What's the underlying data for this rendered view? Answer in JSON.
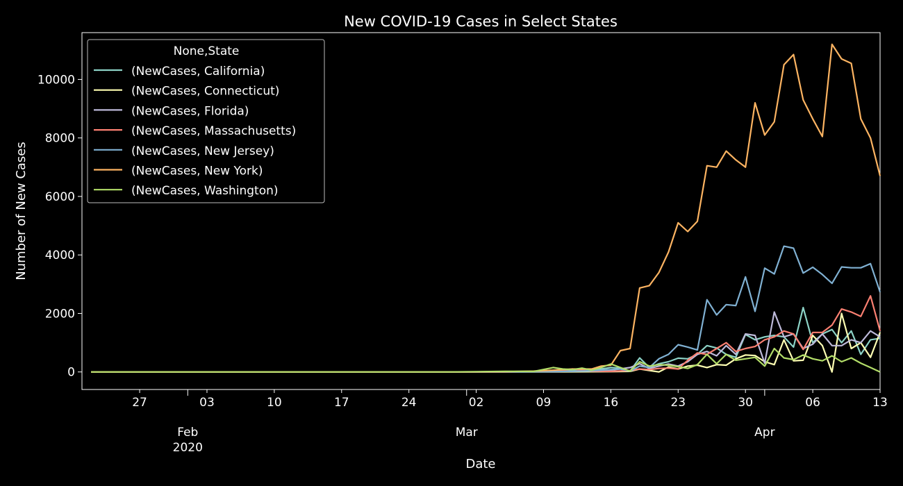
{
  "chart_data": {
    "type": "line",
    "title": "New COVID-19 Cases in Select States",
    "xlabel": "Date",
    "ylabel": "Number of New Cases",
    "xlim": [
      "2020-01-21",
      "2020-04-13"
    ],
    "ylim": [
      -600,
      11600
    ],
    "grid": false,
    "background": "#000000",
    "legend": {
      "title": "None,State",
      "placement": "top-left"
    },
    "x_ticks_major": [
      {
        "date": "2020-02-01",
        "label": "Feb",
        "sublabel": "2020"
      },
      {
        "date": "2020-03-01",
        "label": "Mar",
        "sublabel": ""
      },
      {
        "date": "2020-04-01",
        "label": "Apr",
        "sublabel": ""
      }
    ],
    "x_ticks_minor": [
      {
        "date": "2020-01-27",
        "label": "27"
      },
      {
        "date": "2020-02-03",
        "label": "03"
      },
      {
        "date": "2020-02-10",
        "label": "10"
      },
      {
        "date": "2020-02-17",
        "label": "17"
      },
      {
        "date": "2020-02-24",
        "label": "24"
      },
      {
        "date": "2020-03-02",
        "label": "02"
      },
      {
        "date": "2020-03-09",
        "label": "09"
      },
      {
        "date": "2020-03-16",
        "label": "16"
      },
      {
        "date": "2020-03-23",
        "label": "23"
      },
      {
        "date": "2020-03-30",
        "label": "30"
      },
      {
        "date": "2020-04-06",
        "label": "06"
      },
      {
        "date": "2020-04-13",
        "label": "13"
      }
    ],
    "y_ticks": [
      0,
      2000,
      4000,
      6000,
      8000,
      10000
    ],
    "series": [
      {
        "name": "(NewCases, California)",
        "color": "#8dd3c7",
        "points": [
          [
            "2020-01-21",
            0
          ],
          [
            "2020-03-01",
            0
          ],
          [
            "2020-03-08",
            20
          ],
          [
            "2020-03-12",
            70
          ],
          [
            "2020-03-15",
            100
          ],
          [
            "2020-03-16",
            150
          ],
          [
            "2020-03-17",
            130
          ],
          [
            "2020-03-18",
            30
          ],
          [
            "2020-03-19",
            480
          ],
          [
            "2020-03-20",
            150
          ],
          [
            "2020-03-21",
            280
          ],
          [
            "2020-03-22",
            350
          ],
          [
            "2020-03-23",
            470
          ],
          [
            "2020-03-24",
            450
          ],
          [
            "2020-03-25",
            600
          ],
          [
            "2020-03-26",
            900
          ],
          [
            "2020-03-27",
            820
          ],
          [
            "2020-03-28",
            600
          ],
          [
            "2020-03-29",
            500
          ],
          [
            "2020-03-30",
            1280
          ],
          [
            "2020-03-31",
            1100
          ],
          [
            "2020-04-01",
            1200
          ],
          [
            "2020-04-02",
            1250
          ],
          [
            "2020-04-03",
            1200
          ],
          [
            "2020-04-04",
            850
          ],
          [
            "2020-04-05",
            2200
          ],
          [
            "2020-04-06",
            1000
          ],
          [
            "2020-04-07",
            1300
          ],
          [
            "2020-04-08",
            1450
          ],
          [
            "2020-04-09",
            1000
          ],
          [
            "2020-04-10",
            1400
          ],
          [
            "2020-04-11",
            600
          ],
          [
            "2020-04-12",
            1100
          ],
          [
            "2020-04-13",
            1150
          ]
        ]
      },
      {
        "name": "(NewCases, Connecticut)",
        "color": "#ffffb3",
        "points": [
          [
            "2020-01-21",
            0
          ],
          [
            "2020-03-10",
            0
          ],
          [
            "2020-03-16",
            10
          ],
          [
            "2020-03-18",
            20
          ],
          [
            "2020-03-19",
            100
          ],
          [
            "2020-03-20",
            50
          ],
          [
            "2020-03-21",
            0
          ],
          [
            "2020-03-22",
            170
          ],
          [
            "2020-03-23",
            100
          ],
          [
            "2020-03-24",
            200
          ],
          [
            "2020-03-25",
            230
          ],
          [
            "2020-03-26",
            150
          ],
          [
            "2020-03-27",
            250
          ],
          [
            "2020-03-28",
            230
          ],
          [
            "2020-03-29",
            450
          ],
          [
            "2020-03-30",
            580
          ],
          [
            "2020-03-31",
            560
          ],
          [
            "2020-04-01",
            350
          ],
          [
            "2020-04-02",
            250
          ],
          [
            "2020-04-03",
            1100
          ],
          [
            "2020-04-04",
            380
          ],
          [
            "2020-04-05",
            400
          ],
          [
            "2020-04-06",
            1250
          ],
          [
            "2020-04-07",
            900
          ],
          [
            "2020-04-08",
            0
          ],
          [
            "2020-04-09",
            2000
          ],
          [
            "2020-04-10",
            800
          ],
          [
            "2020-04-11",
            1000
          ],
          [
            "2020-04-12",
            500
          ],
          [
            "2020-04-13",
            1350
          ]
        ]
      },
      {
        "name": "(NewCases, Florida)",
        "color": "#bebada",
        "points": [
          [
            "2020-01-21",
            0
          ],
          [
            "2020-03-02",
            0
          ],
          [
            "2020-03-10",
            10
          ],
          [
            "2020-03-14",
            40
          ],
          [
            "2020-03-16",
            60
          ],
          [
            "2020-03-18",
            150
          ],
          [
            "2020-03-19",
            280
          ],
          [
            "2020-03-20",
            120
          ],
          [
            "2020-03-21",
            200
          ],
          [
            "2020-03-22",
            270
          ],
          [
            "2020-03-23",
            200
          ],
          [
            "2020-03-24",
            350
          ],
          [
            "2020-03-25",
            600
          ],
          [
            "2020-03-26",
            700
          ],
          [
            "2020-03-27",
            550
          ],
          [
            "2020-03-28",
            900
          ],
          [
            "2020-03-29",
            600
          ],
          [
            "2020-03-30",
            1300
          ],
          [
            "2020-03-31",
            1250
          ],
          [
            "2020-04-01",
            300
          ],
          [
            "2020-04-02",
            2050
          ],
          [
            "2020-04-03",
            1200
          ],
          [
            "2020-04-04",
            1300
          ],
          [
            "2020-04-05",
            800
          ],
          [
            "2020-04-06",
            950
          ],
          [
            "2020-04-07",
            1300
          ],
          [
            "2020-04-08",
            900
          ],
          [
            "2020-04-09",
            900
          ],
          [
            "2020-04-10",
            1100
          ],
          [
            "2020-04-11",
            1000
          ],
          [
            "2020-04-12",
            1400
          ],
          [
            "2020-04-13",
            1200
          ]
        ]
      },
      {
        "name": "(NewCases, Massachusetts)",
        "color": "#fb8072",
        "points": [
          [
            "2020-01-21",
            0
          ],
          [
            "2020-03-05",
            0
          ],
          [
            "2020-03-10",
            20
          ],
          [
            "2020-03-12",
            100
          ],
          [
            "2020-03-14",
            30
          ],
          [
            "2020-03-16",
            20
          ],
          [
            "2020-03-18",
            50
          ],
          [
            "2020-03-19",
            100
          ],
          [
            "2020-03-20",
            80
          ],
          [
            "2020-03-21",
            120
          ],
          [
            "2020-03-22",
            130
          ],
          [
            "2020-03-23",
            100
          ],
          [
            "2020-03-24",
            400
          ],
          [
            "2020-03-25",
            650
          ],
          [
            "2020-03-26",
            600
          ],
          [
            "2020-03-27",
            800
          ],
          [
            "2020-03-28",
            1000
          ],
          [
            "2020-03-29",
            700
          ],
          [
            "2020-03-30",
            800
          ],
          [
            "2020-03-31",
            870
          ],
          [
            "2020-04-01",
            1100
          ],
          [
            "2020-04-02",
            1200
          ],
          [
            "2020-04-03",
            1400
          ],
          [
            "2020-04-04",
            1300
          ],
          [
            "2020-04-05",
            770
          ],
          [
            "2020-04-06",
            1350
          ],
          [
            "2020-04-07",
            1350
          ],
          [
            "2020-04-08",
            1600
          ],
          [
            "2020-04-09",
            2150
          ],
          [
            "2020-04-10",
            2050
          ],
          [
            "2020-04-11",
            1900
          ],
          [
            "2020-04-12",
            2600
          ],
          [
            "2020-04-13",
            1400
          ]
        ]
      },
      {
        "name": "(NewCases, New Jersey)",
        "color": "#80b1d3",
        "points": [
          [
            "2020-01-21",
            0
          ],
          [
            "2020-03-05",
            0
          ],
          [
            "2020-03-10",
            10
          ],
          [
            "2020-03-14",
            40
          ],
          [
            "2020-03-16",
            80
          ],
          [
            "2020-03-17",
            100
          ],
          [
            "2020-03-18",
            30
          ],
          [
            "2020-03-19",
            200
          ],
          [
            "2020-03-20",
            150
          ],
          [
            "2020-03-21",
            450
          ],
          [
            "2020-03-22",
            600
          ],
          [
            "2020-03-23",
            930
          ],
          [
            "2020-03-24",
            850
          ],
          [
            "2020-03-25",
            750
          ],
          [
            "2020-03-26",
            2470
          ],
          [
            "2020-03-27",
            1950
          ],
          [
            "2020-03-28",
            2300
          ],
          [
            "2020-03-29",
            2270
          ],
          [
            "2020-03-30",
            3250
          ],
          [
            "2020-03-31",
            2070
          ],
          [
            "2020-04-01",
            3550
          ],
          [
            "2020-04-02",
            3350
          ],
          [
            "2020-04-03",
            4300
          ],
          [
            "2020-04-04",
            4230
          ],
          [
            "2020-04-05",
            3380
          ],
          [
            "2020-04-06",
            3580
          ],
          [
            "2020-04-07",
            3330
          ],
          [
            "2020-04-08",
            3030
          ],
          [
            "2020-04-09",
            3590
          ],
          [
            "2020-04-10",
            3560
          ],
          [
            "2020-04-11",
            3560
          ],
          [
            "2020-04-12",
            3700
          ],
          [
            "2020-04-13",
            2730
          ]
        ]
      },
      {
        "name": "(NewCases, New York)",
        "color": "#fdb462",
        "points": [
          [
            "2020-01-21",
            0
          ],
          [
            "2020-03-01",
            0
          ],
          [
            "2020-03-05",
            10
          ],
          [
            "2020-03-08",
            30
          ],
          [
            "2020-03-10",
            60
          ],
          [
            "2020-03-12",
            100
          ],
          [
            "2020-03-14",
            100
          ],
          [
            "2020-03-15",
            200
          ],
          [
            "2020-03-16",
            230
          ],
          [
            "2020-03-17",
            730
          ],
          [
            "2020-03-18",
            800
          ],
          [
            "2020-03-19",
            2870
          ],
          [
            "2020-03-20",
            2950
          ],
          [
            "2020-03-21",
            3400
          ],
          [
            "2020-03-22",
            4100
          ],
          [
            "2020-03-23",
            5100
          ],
          [
            "2020-03-24",
            4800
          ],
          [
            "2020-03-25",
            5150
          ],
          [
            "2020-03-26",
            7050
          ],
          [
            "2020-03-27",
            7000
          ],
          [
            "2020-03-28",
            7550
          ],
          [
            "2020-03-29",
            7250
          ],
          [
            "2020-03-30",
            7000
          ],
          [
            "2020-03-31",
            9200
          ],
          [
            "2020-04-01",
            8100
          ],
          [
            "2020-04-02",
            8550
          ],
          [
            "2020-04-03",
            10500
          ],
          [
            "2020-04-04",
            10850
          ],
          [
            "2020-04-05",
            9300
          ],
          [
            "2020-04-06",
            8650
          ],
          [
            "2020-04-07",
            8050
          ],
          [
            "2020-04-08",
            11200
          ],
          [
            "2020-04-09",
            10700
          ],
          [
            "2020-04-10",
            10550
          ],
          [
            "2020-04-11",
            8650
          ],
          [
            "2020-04-12",
            8000
          ],
          [
            "2020-04-13",
            6700
          ]
        ]
      },
      {
        "name": "(NewCases, Washington)",
        "color": "#b3de69",
        "points": [
          [
            "2020-01-21",
            0
          ],
          [
            "2020-02-28",
            0
          ],
          [
            "2020-03-02",
            10
          ],
          [
            "2020-03-05",
            20
          ],
          [
            "2020-03-08",
            20
          ],
          [
            "2020-03-10",
            150
          ],
          [
            "2020-03-11",
            100
          ],
          [
            "2020-03-12",
            80
          ],
          [
            "2020-03-13",
            130
          ],
          [
            "2020-03-14",
            60
          ],
          [
            "2020-03-15",
            150
          ],
          [
            "2020-03-16",
            270
          ],
          [
            "2020-03-17",
            150
          ],
          [
            "2020-03-18",
            30
          ],
          [
            "2020-03-19",
            350
          ],
          [
            "2020-03-20",
            200
          ],
          [
            "2020-03-21",
            250
          ],
          [
            "2020-03-22",
            230
          ],
          [
            "2020-03-23",
            180
          ],
          [
            "2020-03-24",
            120
          ],
          [
            "2020-03-25",
            250
          ],
          [
            "2020-03-26",
            600
          ],
          [
            "2020-03-27",
            280
          ],
          [
            "2020-03-28",
            600
          ],
          [
            "2020-03-29",
            400
          ],
          [
            "2020-03-30",
            450
          ],
          [
            "2020-03-31",
            500
          ],
          [
            "2020-04-01",
            200
          ],
          [
            "2020-04-02",
            800
          ],
          [
            "2020-04-03",
            480
          ],
          [
            "2020-04-04",
            420
          ],
          [
            "2020-04-05",
            580
          ],
          [
            "2020-04-06",
            450
          ],
          [
            "2020-04-07",
            380
          ],
          [
            "2020-04-08",
            550
          ],
          [
            "2020-04-09",
            350
          ],
          [
            "2020-04-10",
            480
          ],
          [
            "2020-04-11",
            300
          ],
          [
            "2020-04-12",
            150
          ],
          [
            "2020-04-13",
            0
          ]
        ]
      }
    ]
  }
}
